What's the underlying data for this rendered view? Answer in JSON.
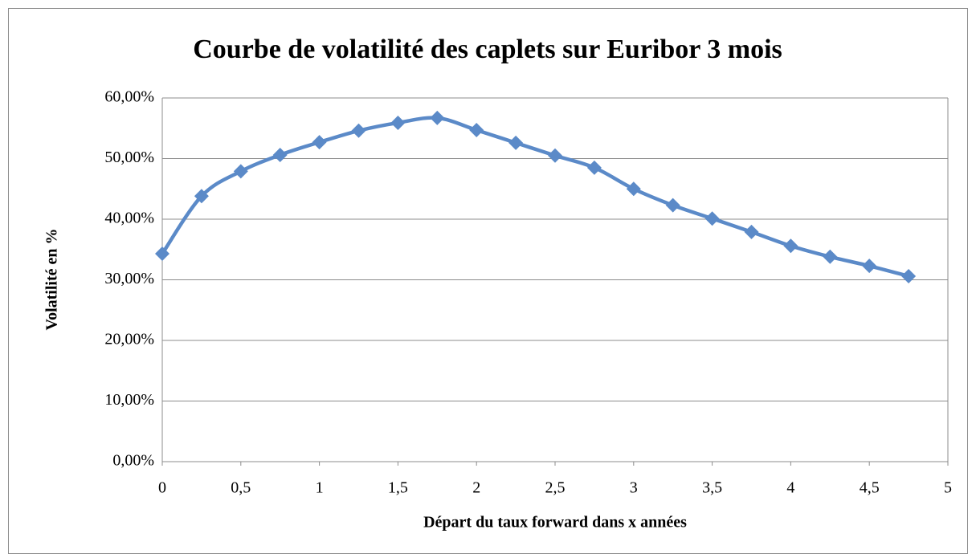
{
  "chart_data": {
    "type": "line",
    "title": "Courbe de volatilité des caplets sur Euribor 3 mois",
    "x_label": "Départ du taux forward dans x années",
    "y_label": "Volatilité en %",
    "x": [
      0,
      0.25,
      0.5,
      0.75,
      1,
      1.25,
      1.5,
      1.75,
      2,
      2.25,
      2.5,
      2.75,
      3,
      3.25,
      3.5,
      3.75,
      4,
      4.25,
      4.5,
      4.75
    ],
    "series": [
      {
        "color": "#5b8ac8",
        "values": [
          34.3,
          43.8,
          47.9,
          50.6,
          52.7,
          54.6,
          55.9,
          56.7,
          54.7,
          52.6,
          50.5,
          48.5,
          45.0,
          42.3,
          40.1,
          37.9,
          35.6,
          33.8,
          32.3,
          30.6
        ]
      }
    ],
    "xlim": [
      0,
      5
    ],
    "xticks": [
      0,
      {
        "value": 0.5,
        "label": "0,5"
      },
      1,
      {
        "value": 1.5,
        "label": "1,5"
      },
      2,
      {
        "value": 2.5,
        "label": "2,5"
      },
      3,
      {
        "value": 3.5,
        "label": "3,5"
      },
      4,
      {
        "value": 4.5,
        "label": "4,5"
      },
      5
    ],
    "ylim": [
      0,
      60
    ],
    "yticks": [
      {
        "value": 0,
        "label": "0,00%"
      },
      {
        "value": 10,
        "label": "10,00%"
      },
      {
        "value": 20,
        "label": "20,00%"
      },
      {
        "value": 30,
        "label": "30,00%"
      },
      {
        "value": 40,
        "label": "40,00%"
      },
      {
        "value": 50,
        "label": "50,00%"
      },
      {
        "value": 60,
        "label": "60,00%"
      }
    ],
    "grid": true
  }
}
